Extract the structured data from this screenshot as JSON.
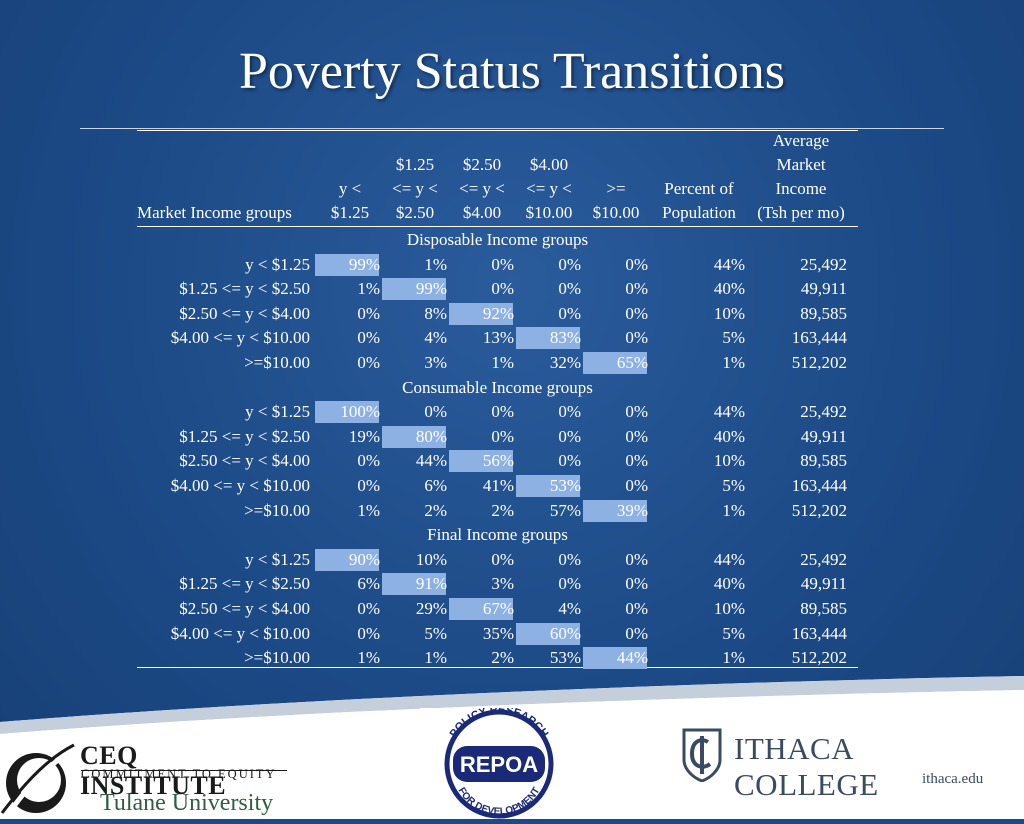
{
  "title": "Poverty Status Transitions",
  "headers": {
    "row_label": "Market Income groups",
    "col1": [
      "y <",
      "$1.25"
    ],
    "col2": [
      "$1.25",
      "<= y <",
      "$2.50"
    ],
    "col3": [
      "$2.50",
      "<= y <",
      "$4.00"
    ],
    "col4": [
      "$4.00",
      "<= y <",
      "$10.00"
    ],
    "col5": [
      ">=",
      "$10.00"
    ],
    "pct": [
      "Percent of",
      "Population"
    ],
    "avg": [
      "Average",
      "Market",
      "Income",
      "(Tsh per mo)"
    ]
  },
  "sections": [
    {
      "label": "Disposable Income groups",
      "rows": [
        {
          "group": "y < $1.25",
          "v": [
            "99%",
            "1%",
            "0%",
            "0%",
            "0%"
          ],
          "pct": "44%",
          "income": "25,492"
        },
        {
          "group": "$1.25 <= y < $2.50",
          "v": [
            "1%",
            "99%",
            "0%",
            "0%",
            "0%"
          ],
          "pct": "40%",
          "income": "49,911"
        },
        {
          "group": "$2.50 <= y < $4.00",
          "v": [
            "0%",
            "8%",
            "92%",
            "0%",
            "0%"
          ],
          "pct": "10%",
          "income": "89,585"
        },
        {
          "group": "$4.00 <= y < $10.00",
          "v": [
            "0%",
            "4%",
            "13%",
            "83%",
            "0%"
          ],
          "pct": "5%",
          "income": "163,444"
        },
        {
          "group": ">=$10.00",
          "v": [
            "0%",
            "3%",
            "1%",
            "32%",
            "65%"
          ],
          "pct": "1%",
          "income": "512,202"
        }
      ]
    },
    {
      "label": "Consumable Income groups",
      "rows": [
        {
          "group": "y < $1.25",
          "v": [
            "100%",
            "0%",
            "0%",
            "0%",
            "0%"
          ],
          "pct": "44%",
          "income": "25,492"
        },
        {
          "group": "$1.25 <= y < $2.50",
          "v": [
            "19%",
            "80%",
            "0%",
            "0%",
            "0%"
          ],
          "pct": "40%",
          "income": "49,911"
        },
        {
          "group": "$2.50 <= y < $4.00",
          "v": [
            "0%",
            "44%",
            "56%",
            "0%",
            "0%"
          ],
          "pct": "10%",
          "income": "89,585"
        },
        {
          "group": "$4.00 <= y < $10.00",
          "v": [
            "0%",
            "6%",
            "41%",
            "53%",
            "0%"
          ],
          "pct": "5%",
          "income": "163,444"
        },
        {
          "group": ">=$10.00",
          "v": [
            "1%",
            "2%",
            "2%",
            "57%",
            "39%"
          ],
          "pct": "1%",
          "income": "512,202"
        }
      ]
    },
    {
      "label": "Final Income groups",
      "rows": [
        {
          "group": "y < $1.25",
          "v": [
            "90%",
            "10%",
            "0%",
            "0%",
            "0%"
          ],
          "pct": "44%",
          "income": "25,492"
        },
        {
          "group": "$1.25 <= y < $2.50",
          "v": [
            "6%",
            "91%",
            "3%",
            "0%",
            "0%"
          ],
          "pct": "40%",
          "income": "49,911"
        },
        {
          "group": "$2.50 <= y < $4.00",
          "v": [
            "0%",
            "29%",
            "67%",
            "4%",
            "0%"
          ],
          "pct": "10%",
          "income": "89,585"
        },
        {
          "group": "$4.00 <= y < $10.00",
          "v": [
            "0%",
            "5%",
            "35%",
            "60%",
            "0%"
          ],
          "pct": "5%",
          "income": "163,444"
        },
        {
          "group": ">=$10.00",
          "v": [
            "1%",
            "1%",
            "2%",
            "53%",
            "44%"
          ],
          "pct": "1%",
          "income": "512,202"
        }
      ]
    }
  ],
  "logos": {
    "ceq_line1": "CEQ INSTITUTE",
    "ceq_line2": "COMMITMENT TO EQUITY",
    "ceq_line3": "Tulane University",
    "repoa_top": "POLICY RESEARCH",
    "repoa_name": "REPOA",
    "repoa_bottom": "FOR DEVELOPMENT",
    "ithaca_name": "ITHACA COLLEGE",
    "ithaca_url": "ithaca.edu"
  },
  "colors": {
    "background": "#1d4a86",
    "highlight": "#8eb1e3",
    "ithaca_text": "#3a4a63",
    "repoa_navy": "#1b2a78"
  }
}
